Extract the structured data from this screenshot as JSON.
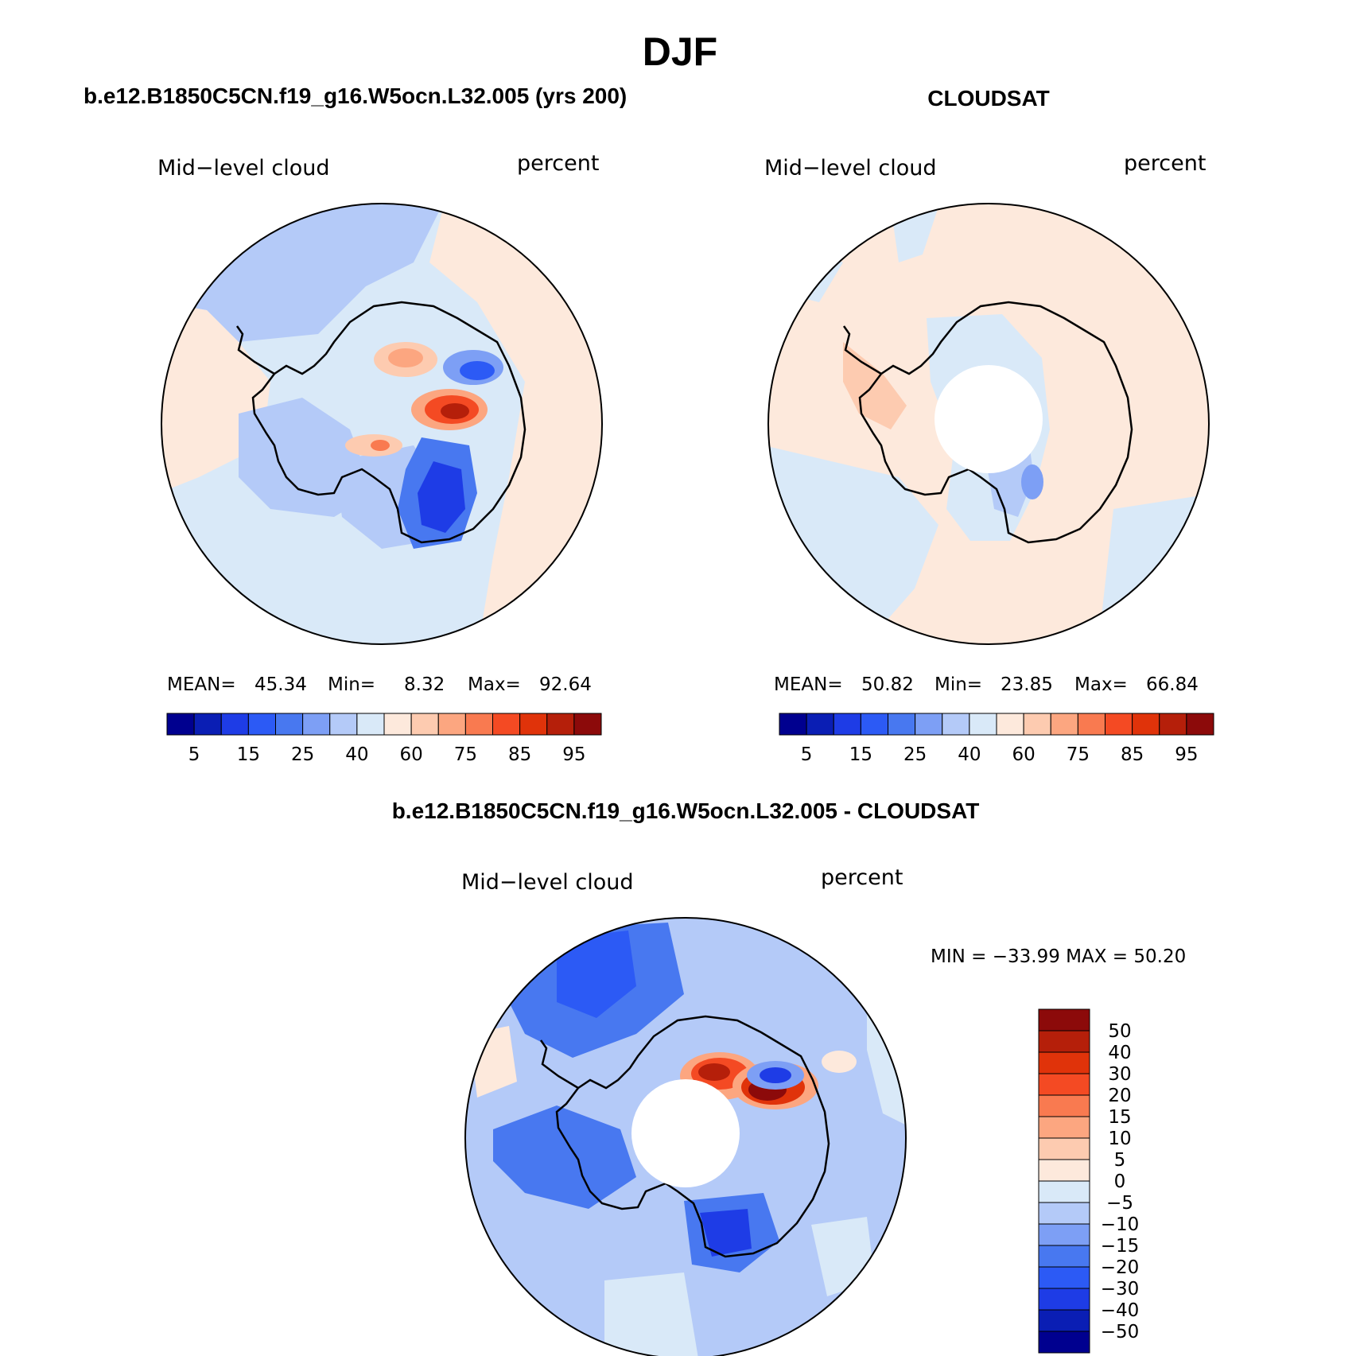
{
  "title": "DJF",
  "colors": {
    "abs_scale": [
      "#00008f",
      "#0a1eb4",
      "#1e3ce6",
      "#2c5af5",
      "#4878f0",
      "#7d9ff5",
      "#b4caf8",
      "#d9e9f8",
      "#fde9dc",
      "#fdcbb0",
      "#fca680",
      "#f97a50",
      "#f44a23",
      "#e0330a",
      "#b51f0a",
      "#8c0a0a"
    ],
    "diff_scale": [
      "#00008f",
      "#0a1eb4",
      "#1e3ce6",
      "#2c5af5",
      "#4878f0",
      "#7d9ff5",
      "#b4caf8",
      "#d9e9f8",
      "#fde9dc",
      "#fdcbb0",
      "#fca680",
      "#f97a50",
      "#f44a23",
      "#e0330a",
      "#b51f0a",
      "#8c0a0a"
    ]
  },
  "chart_data": [
    {
      "type": "heatmap",
      "title": "b.e12.B1850C5CN.f19_g16.W5ocn.L32.005 (yrs 200)",
      "variable": "Mid−level cloud",
      "units": "percent",
      "projection": "south polar stereographic",
      "stats": {
        "mean_label": "MEAN=",
        "mean": "45.34",
        "min_label": "Min=",
        "min": "8.32",
        "max_label": "Max=",
        "max": "92.64"
      },
      "colorbar_ticks": [
        "5",
        "15",
        "25",
        "40",
        "60",
        "75",
        "85",
        "95"
      ]
    },
    {
      "type": "heatmap",
      "title": "CLOUDSAT",
      "variable": "Mid−level cloud",
      "units": "percent",
      "projection": "south polar stereographic",
      "stats": {
        "mean_label": "MEAN=",
        "mean": "50.82",
        "min_label": "Min=",
        "min": "23.85",
        "max_label": "Max=",
        "max": "66.84"
      },
      "colorbar_ticks": [
        "5",
        "15",
        "25",
        "40",
        "60",
        "75",
        "85",
        "95"
      ]
    },
    {
      "type": "heatmap",
      "title": "b.e12.B1850C5CN.f19_g16.W5ocn.L32.005 - CLOUDSAT",
      "variable": "Mid−level cloud",
      "units": "percent",
      "projection": "south polar stereographic",
      "stats_text": "MIN = −33.99 MAX =   50.20",
      "colorbar_ticks": [
        "50",
        "40",
        "30",
        "20",
        "15",
        "10",
        "5",
        "0",
        "−5",
        "−10",
        "−15",
        "−20",
        "−30",
        "−40",
        "−50"
      ]
    }
  ]
}
